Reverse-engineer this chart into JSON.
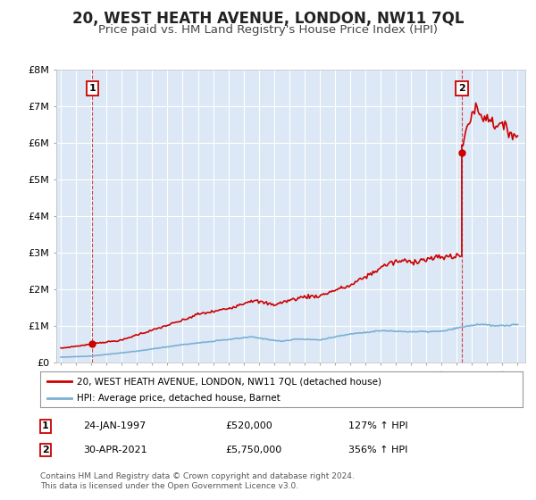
{
  "title": "20, WEST HEATH AVENUE, LONDON, NW11 7QL",
  "subtitle": "Price paid vs. HM Land Registry's House Price Index (HPI)",
  "title_fontsize": 12,
  "subtitle_fontsize": 9.5,
  "background_color": "#ffffff",
  "plot_bg_color": "#dce8f5",
  "grid_color": "#ffffff",
  "ylim": [
    0,
    8000000
  ],
  "yticks": [
    0,
    1000000,
    2000000,
    3000000,
    4000000,
    5000000,
    6000000,
    7000000,
    8000000
  ],
  "ytick_labels": [
    "£0",
    "£1M",
    "£2M",
    "£3M",
    "£4M",
    "£5M",
    "£6M",
    "£7M",
    "£8M"
  ],
  "xlim_start": 1994.7,
  "xlim_end": 2025.5,
  "xtick_years": [
    1995,
    1996,
    1997,
    1998,
    1999,
    2000,
    2001,
    2002,
    2003,
    2004,
    2005,
    2006,
    2007,
    2008,
    2009,
    2010,
    2011,
    2012,
    2013,
    2014,
    2015,
    2016,
    2017,
    2018,
    2019,
    2020,
    2021,
    2022,
    2023,
    2024,
    2025
  ],
  "hpi_line_color": "#7ab0d4",
  "price_line_color": "#cc0000",
  "marker_color": "#cc0000",
  "dashed_line_color": "#cc0000",
  "sale1_x": 1997.07,
  "sale1_y": 520000,
  "sale1_label": "1",
  "sale2_x": 2021.33,
  "sale2_y": 5750000,
  "sale2_label": "2",
  "legend_label1": "20, WEST HEATH AVENUE, LONDON, NW11 7QL (detached house)",
  "legend_label2": "HPI: Average price, detached house, Barnet",
  "annotation1_num": "1",
  "annotation1_date": "24-JAN-1997",
  "annotation1_price": "£520,000",
  "annotation1_hpi": "127% ↑ HPI",
  "annotation2_num": "2",
  "annotation2_date": "30-APR-2021",
  "annotation2_price": "£5,750,000",
  "annotation2_hpi": "356% ↑ HPI",
  "footer": "Contains HM Land Registry data © Crown copyright and database right 2024.\nThis data is licensed under the Open Government Licence v3.0."
}
